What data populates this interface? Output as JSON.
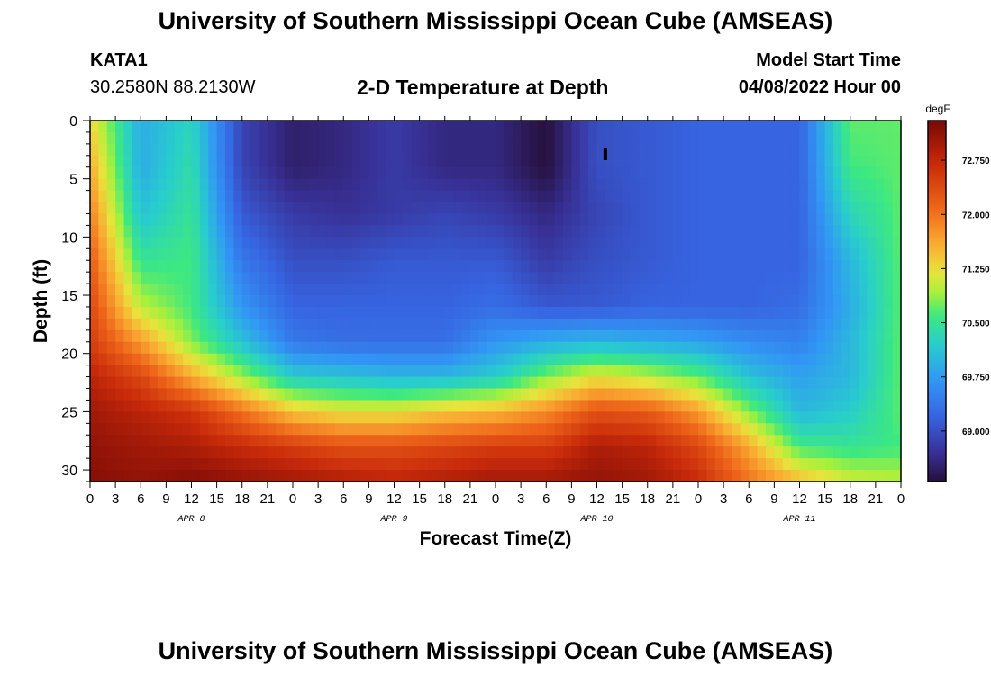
{
  "page_title": "University of Southern Mississippi Ocean Cube (AMSEAS)",
  "footer_title": "University of Southern Mississippi Ocean Cube (AMSEAS)",
  "station": {
    "id": "KATA1",
    "coordinates": "30.2580N  88.2130W"
  },
  "model_start": {
    "label": "Model Start Time",
    "value": "04/08/2022 Hour 00"
  },
  "chart_data": {
    "type": "heatmap",
    "title": "2-D Temperature at Depth",
    "xlabel": "Forecast Time(Z)",
    "ylabel": "Depth (ft)",
    "xlim": [
      0,
      96
    ],
    "ylim": [
      0,
      31
    ],
    "x_tick_labels": [
      "0",
      "3",
      "6",
      "9",
      "12",
      "15",
      "18",
      "21",
      "0",
      "3",
      "6",
      "9",
      "12",
      "15",
      "18",
      "21",
      "0",
      "3",
      "6",
      "9",
      "12",
      "15",
      "18",
      "21",
      "0",
      "3",
      "6",
      "9",
      "12",
      "15",
      "18",
      "21",
      "0"
    ],
    "date_labels": [
      {
        "label": "APR 8",
        "hour": 12
      },
      {
        "label": "APR 9",
        "hour": 36
      },
      {
        "label": "APR 10",
        "hour": 60
      },
      {
        "label": "APR 11",
        "hour": 84
      }
    ],
    "y_ticks": [
      0,
      5,
      10,
      15,
      20,
      25,
      30
    ],
    "colorbar": {
      "unit": "degF",
      "min": 68.3,
      "max": 73.3,
      "ticks": [
        "72.750",
        "72.000",
        "71.250",
        "70.500",
        "69.750",
        "69.000"
      ],
      "tick_values": [
        72.75,
        72.0,
        71.25,
        70.5,
        69.75,
        69.0
      ]
    },
    "grid_hours": [
      0,
      6,
      12,
      18,
      24,
      30,
      36,
      42,
      48,
      54,
      60,
      66,
      72,
      78,
      84,
      90,
      96
    ],
    "grid_depths": [
      0,
      4,
      8,
      12,
      16,
      19,
      22,
      25,
      28,
      31
    ],
    "values": [
      [
        71.3,
        69.9,
        70.3,
        68.9,
        68.5,
        68.6,
        68.8,
        68.6,
        68.6,
        68.3,
        69.0,
        69.1,
        69.2,
        69.2,
        69.2,
        70.7,
        70.7
      ],
      [
        71.6,
        69.9,
        70.4,
        68.9,
        68.5,
        68.6,
        68.8,
        68.6,
        68.6,
        68.3,
        69.0,
        69.1,
        69.2,
        69.2,
        69.2,
        70.6,
        70.7
      ],
      [
        71.9,
        70.1,
        70.5,
        69.1,
        68.8,
        68.7,
        68.8,
        68.9,
        68.8,
        68.6,
        68.9,
        69.1,
        69.2,
        69.2,
        69.2,
        70.3,
        70.7
      ],
      [
        72.2,
        70.5,
        70.6,
        69.4,
        69.0,
        69.0,
        69.1,
        69.1,
        69.1,
        68.8,
        69.0,
        69.1,
        69.2,
        69.2,
        69.2,
        70.0,
        70.7
      ],
      [
        72.4,
        71.0,
        70.6,
        69.7,
        69.2,
        69.2,
        69.2,
        69.2,
        69.3,
        69.1,
        69.1,
        69.2,
        69.2,
        69.2,
        69.3,
        69.9,
        70.7
      ],
      [
        72.5,
        71.7,
        70.8,
        70.1,
        69.4,
        69.3,
        69.3,
        69.3,
        69.7,
        69.9,
        70.0,
        69.9,
        69.8,
        69.6,
        69.5,
        70.0,
        70.7
      ],
      [
        72.8,
        72.4,
        71.6,
        70.9,
        70.2,
        70.1,
        70.0,
        70.0,
        70.2,
        70.8,
        71.2,
        71.0,
        70.7,
        70.1,
        69.8,
        70.0,
        70.7
      ],
      [
        73.0,
        72.8,
        72.6,
        72.0,
        71.4,
        71.2,
        71.2,
        71.4,
        71.5,
        71.8,
        72.3,
        72.2,
        71.7,
        70.8,
        70.0,
        70.2,
        70.7
      ],
      [
        73.1,
        73.0,
        72.9,
        72.7,
        72.5,
        72.3,
        72.3,
        72.4,
        72.5,
        72.5,
        72.9,
        72.8,
        72.4,
        71.6,
        70.6,
        70.5,
        70.6
      ],
      [
        73.2,
        73.1,
        73.2,
        73.1,
        73.0,
        72.9,
        72.8,
        72.9,
        73.0,
        73.0,
        73.1,
        73.0,
        72.7,
        72.0,
        71.5,
        71.1,
        71.0
      ]
    ],
    "marker": {
      "hour": 61,
      "depth_from": 2.4,
      "depth_to": 3.4
    }
  }
}
